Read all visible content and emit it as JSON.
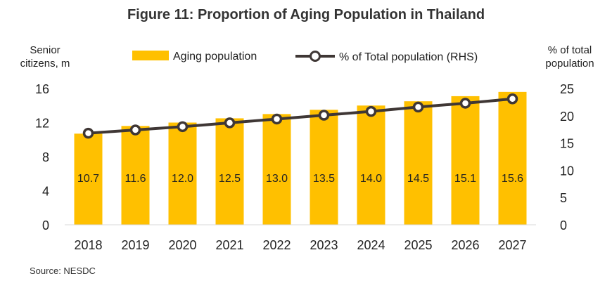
{
  "title": "Figure 11: Proportion of Aging Population  in Thailand",
  "source": "Source: NESDC",
  "colors": {
    "bar": "#FFC000",
    "line": "#3f3735",
    "marker_fill": "#ffffff"
  },
  "chart_data": {
    "type": "bar",
    "combo": "bar + line on secondary axis",
    "title": "Figure 11: Proportion of Aging Population  in Thailand",
    "ylabel": "Senior citizens, m",
    "y2label": "% of total population",
    "categories": [
      "2018",
      "2019",
      "2020",
      "2021",
      "2022",
      "2023",
      "2024",
      "2025",
      "2026",
      "2027"
    ],
    "ylim": [
      0,
      16
    ],
    "yticks": [
      0,
      4,
      8,
      12,
      16
    ],
    "y2lim": [
      0,
      25
    ],
    "y2ticks": [
      0,
      5,
      10,
      15,
      20,
      25
    ],
    "series": [
      {
        "name": "Aging population",
        "type": "bar",
        "axis": "left",
        "values": [
          10.7,
          11.6,
          12.0,
          12.5,
          13.0,
          13.5,
          14.0,
          14.5,
          15.1,
          15.6
        ],
        "labels": [
          "10.7",
          "11.6",
          "12.0",
          "12.5",
          "13.0",
          "13.5",
          "14.0",
          "14.5",
          "15.1",
          "15.6"
        ]
      },
      {
        "name": "% of Total population (RHS)",
        "type": "line",
        "axis": "right",
        "values": [
          16.8,
          17.4,
          18.0,
          18.7,
          19.4,
          20.1,
          20.8,
          21.6,
          22.3,
          23.1
        ]
      }
    ],
    "grid": false,
    "legend": "top"
  }
}
